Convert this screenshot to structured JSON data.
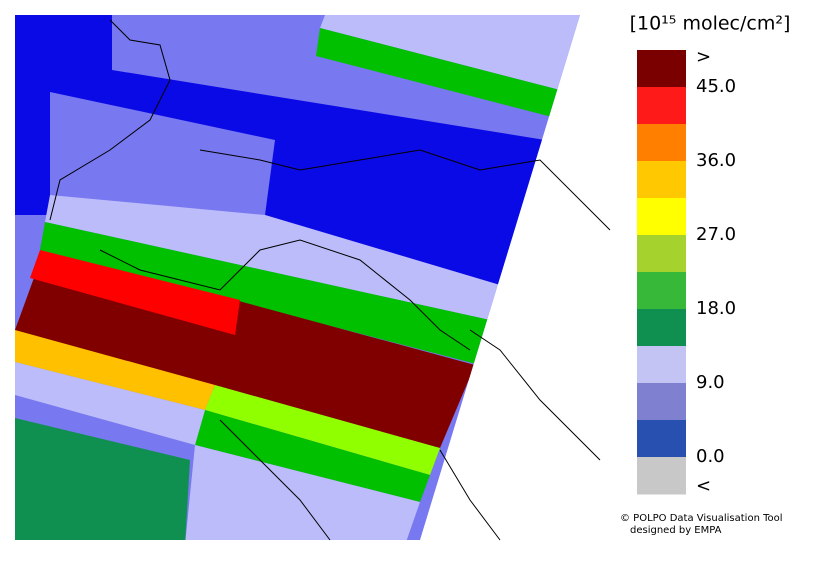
{
  "legend": {
    "title": "[10¹⁵ molec/cm²]",
    "colors": [
      "#7a0000",
      "#ff1a1a",
      "#ff8000",
      "#ffc800",
      "#ffff00",
      "#a6d22e",
      "#38b838",
      "#109050",
      "#c4c4f4",
      "#8080d0",
      "#2850b0",
      "#c8c8c8"
    ],
    "labels": [
      ">",
      "45.0",
      "36.0",
      "27.0",
      "18.0",
      "9.0",
      "0.0",
      "<"
    ]
  },
  "credits": [
    "© POLPO Data Visualisation Tool",
    "designed by EMPA"
  ]
}
